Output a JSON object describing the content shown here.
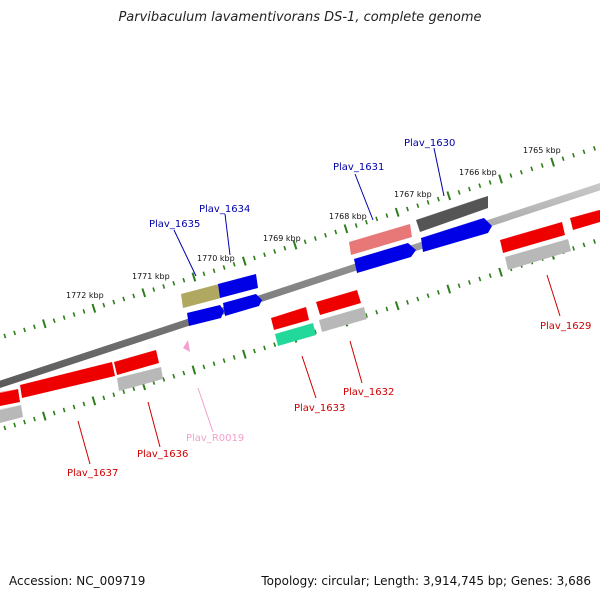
{
  "header": {
    "title": "Parvibaculum lavamentivorans DS-1, complete genome"
  },
  "footer": {
    "accession": "Accession: NC_009719",
    "summary": "Topology: circular; Length: 3,914,745 bp; Genes: 3,686"
  },
  "colors": {
    "backbone": "#7f7f7f",
    "tick": "#2e7d1b",
    "red_gene": "#ee0000",
    "blue_gene": "#0000e6",
    "gray_gene": "#b8b8b8",
    "dark_gene": "#555555",
    "salmon_gene": "#e87878",
    "olive_gene": "#b0a860",
    "green_gene": "#22d89a",
    "rna_gene": "#f2a0d0",
    "label_red": "#cc0000",
    "label_blue": "#0000aa",
    "label_pink": "#f2a0cc"
  },
  "kbp_marks": [
    "1765 kbp",
    "1766 kbp",
    "1767 kbp",
    "1768 kbp",
    "1769 kbp",
    "1770 kbp",
    "1771 kbp",
    "1772 kbp"
  ],
  "gene_labels": {
    "plav_1629": "Plav_1629",
    "plav_1630": "Plav_1630",
    "plav_1631": "Plav_1631",
    "plav_1632": "Plav_1632",
    "plav_1633": "Plav_1633",
    "plav_1634": "Plav_1634",
    "plav_1635": "Plav_1635",
    "plav_1636": "Plav_1636",
    "plav_1637": "Plav_1637",
    "plav_r0019": "Plav_R0019"
  }
}
